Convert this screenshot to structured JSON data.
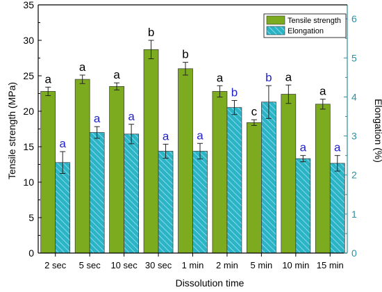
{
  "chart_data": {
    "type": "bar",
    "xlabel": "Dissolution time",
    "ylabel_left": "Tensile strength (MPa)",
    "ylabel_right": "Elongation (%)",
    "ylim_left": [
      0,
      35
    ],
    "yticks_left": [
      "0",
      "5",
      "10",
      "15",
      "20",
      "25",
      "30",
      "35"
    ],
    "ylim_right": [
      0,
      6.36
    ],
    "yticks_right": [
      "0",
      "1",
      "2",
      "3",
      "4",
      "5",
      "6"
    ],
    "categories": [
      "2 sec",
      "5 sec",
      "10 sec",
      "30 sec",
      "1 min",
      "2 min",
      "5 min",
      "10 min",
      "15 min"
    ],
    "legend_position": "top-right",
    "series": [
      {
        "name": "Tensile strength",
        "axis": "left",
        "color": "#7dab1f",
        "values": [
          22.8,
          24.5,
          23.5,
          28.7,
          26.0,
          22.8,
          18.4,
          22.4,
          21.0
        ],
        "errors": [
          0.6,
          0.6,
          0.5,
          1.3,
          0.9,
          0.8,
          0.4,
          1.3,
          0.7
        ],
        "letters": [
          "a",
          "a",
          "a",
          "b",
          "b",
          "a",
          "c",
          "a",
          "a"
        ],
        "letter_color": "#000000"
      },
      {
        "name": "Elongation",
        "axis": "right",
        "color": "#2bb3c6",
        "values": [
          2.32,
          3.09,
          3.05,
          2.61,
          2.61,
          3.73,
          3.87,
          2.42,
          2.3
        ],
        "errors": [
          0.28,
          0.15,
          0.25,
          0.18,
          0.2,
          0.18,
          0.42,
          0.08,
          0.2
        ],
        "letters": [
          "a",
          "a",
          "a",
          "a",
          "a",
          "b",
          "b",
          "a",
          "a"
        ],
        "letter_color": "#2222cc"
      }
    ]
  }
}
